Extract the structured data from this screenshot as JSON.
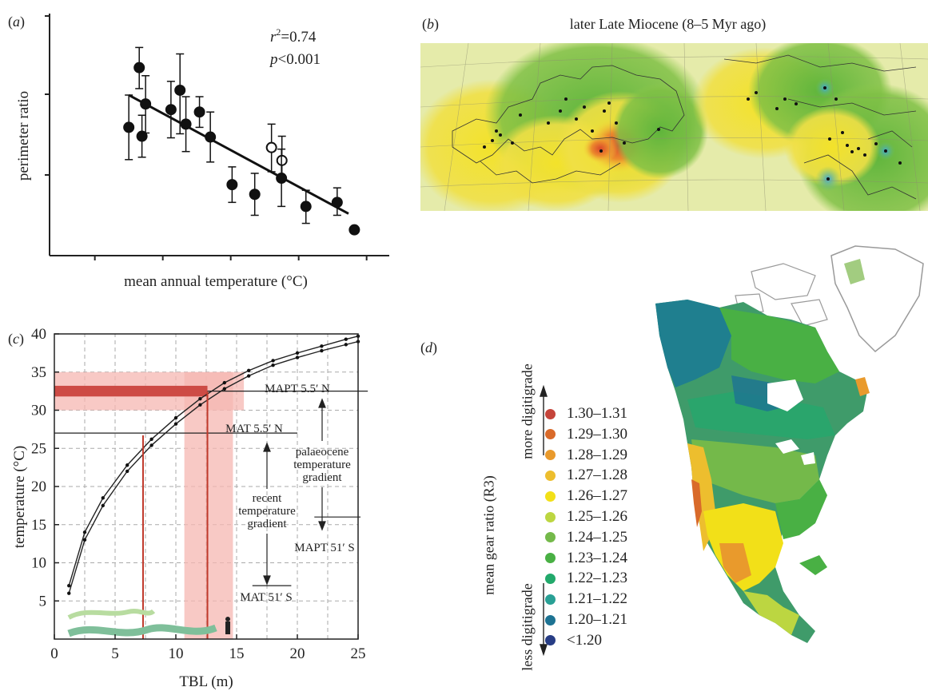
{
  "panels": {
    "a": {
      "label_pre": "(",
      "label_letter": "a",
      "label_post": ")",
      "r2_var": "r",
      "r2_sup": "2",
      "r2_val": "=0.74",
      "p_var": "p",
      "p_val": "<0.001"
    },
    "b": {
      "label_pre": "(",
      "label_letter": "b",
      "label_post": ")",
      "title": "later Late Miocene (8–5 Myr ago)"
    },
    "c": {
      "label_pre": "(",
      "label_letter": "c",
      "label_post": ")",
      "line_labels": {
        "mapt_n": "MAPT 5.5′ N",
        "mat_n": "MAT 5.5′ N",
        "mapt_s": "MAPT 51′ S",
        "mat_s": "MAT 51′ S"
      },
      "palaeo_gradient": [
        "palaeocene",
        "temperature",
        "gradient"
      ],
      "recent_gradient": [
        "recent",
        "temperature",
        "gradient"
      ]
    },
    "d": {
      "label_pre": "(",
      "label_letter": "d",
      "label_post": ")",
      "legend_title": "mean gear ratio (R3)",
      "more": "more digitigrade",
      "less": "less digitigrade",
      "legend": [
        {
          "label": "1.30–1.31",
          "color": "#c5443a"
        },
        {
          "label": "1.29–1.30",
          "color": "#d96a2a"
        },
        {
          "label": "1.28–1.29",
          "color": "#e99a2c"
        },
        {
          "label": "1.27–1.28",
          "color": "#edbe2e"
        },
        {
          "label": "1.26–1.27",
          "color": "#f2e018"
        },
        {
          "label": "1.25–1.26",
          "color": "#bcd641"
        },
        {
          "label": "1.24–1.25",
          "color": "#74b94a"
        },
        {
          "label": "1.23–1.24",
          "color": "#49b044"
        },
        {
          "label": "1.22–1.23",
          "color": "#22a96b"
        },
        {
          "label": "1.21–1.22",
          "color": "#29a095"
        },
        {
          "label": "1.20–1.21",
          "color": "#1d7393"
        },
        {
          "label": "<1.20",
          "color": "#273d85"
        }
      ]
    }
  },
  "chart_data": [
    {
      "type": "scatter",
      "xlabel": "mean annual temperature (°C)",
      "ylabel": "perimeter ratio",
      "x": [
        1,
        2,
        3,
        4,
        5,
        6,
        7
      ],
      "note_units": "axis ticks unlabeled; values in relative axis units",
      "points": [
        {
          "x": 1.75,
          "y": 1.59,
          "lo": 1.19,
          "hi": 1.99,
          "filled": true
        },
        {
          "x": 1.98,
          "y": 2.33,
          "lo": 2.07,
          "hi": 2.58,
          "filled": true
        },
        {
          "x": 2.04,
          "y": 1.48,
          "lo": 1.22,
          "hi": 1.74,
          "filled": true
        },
        {
          "x": 2.12,
          "y": 1.88,
          "lo": 1.52,
          "hi": 2.23,
          "filled": true
        },
        {
          "x": 2.68,
          "y": 1.81,
          "lo": 1.46,
          "hi": 2.16,
          "filled": true
        },
        {
          "x": 2.88,
          "y": 2.05,
          "lo": 1.51,
          "hi": 2.5,
          "filled": true
        },
        {
          "x": 3.01,
          "y": 1.63,
          "lo": 1.29,
          "hi": 1.97,
          "filled": true
        },
        {
          "x": 3.31,
          "y": 1.78,
          "lo": 1.59,
          "hi": 1.97,
          "filled": true
        },
        {
          "x": 3.55,
          "y": 1.47,
          "lo": 1.16,
          "hi": 1.78,
          "filled": true
        },
        {
          "x": 4.03,
          "y": 0.88,
          "lo": 0.66,
          "hi": 1.1,
          "filled": true
        },
        {
          "x": 4.53,
          "y": 0.76,
          "lo": 0.5,
          "hi": 1.02,
          "filled": true
        },
        {
          "x": 4.9,
          "y": 1.34,
          "lo": 1.04,
          "hi": 1.63,
          "filled": false
        },
        {
          "x": 5.13,
          "y": 1.18,
          "lo": 0.95,
          "hi": 1.48,
          "filled": false
        },
        {
          "x": 5.12,
          "y": 0.96,
          "lo": 0.61,
          "hi": 1.32,
          "filled": true
        },
        {
          "x": 5.66,
          "y": 0.61,
          "lo": 0.4,
          "hi": 0.81,
          "filled": true
        },
        {
          "x": 6.35,
          "y": 0.66,
          "lo": 0.5,
          "hi": 0.84,
          "filled": true
        },
        {
          "x": 6.73,
          "y": 0.32,
          "lo": null,
          "hi": null,
          "filled": true
        }
      ],
      "fit": {
        "x": [
          1.75,
          6.6
        ],
        "y": [
          1.99,
          0.52
        ]
      },
      "xlim": [
        0,
        7.5
      ],
      "ylim": [
        0,
        3
      ]
    },
    {
      "type": "line",
      "xlabel": "TBL (m)",
      "ylabel": "temperature (°C)",
      "xlim": [
        0,
        25
      ],
      "ylim": [
        0,
        40
      ],
      "xticks": [
        0,
        5,
        10,
        15,
        20,
        25
      ],
      "yticks": [
        5,
        10,
        15,
        20,
        25,
        30,
        35,
        40
      ],
      "grid": true,
      "series": [
        {
          "x": [
            1.2,
            2.5,
            4,
            6,
            8,
            10,
            12,
            14,
            16,
            18,
            20,
            22,
            24,
            25
          ],
          "y": [
            7,
            14,
            18.5,
            22.8,
            26.2,
            29,
            31.5,
            33.6,
            35.2,
            36.5,
            37.5,
            38.4,
            39.3,
            39.7
          ]
        },
        {
          "x": [
            1.2,
            2.5,
            4,
            6,
            8,
            10,
            12,
            14,
            16,
            18,
            20,
            22,
            24,
            25
          ],
          "y": [
            6,
            13,
            17.5,
            22,
            25.4,
            28.2,
            30.7,
            32.8,
            34.5,
            35.9,
            36.9,
            37.8,
            38.6,
            39
          ]
        }
      ],
      "reference_lines": [
        {
          "label": "MAPT 5.5′ N",
          "y": 32.5
        },
        {
          "label": "MAT 5.5′ N",
          "y": 27
        },
        {
          "label": "MAPT 51′ S",
          "y": 16
        },
        {
          "label": "MAT 51′ S",
          "y": 7
        }
      ],
      "shaded_bands": [
        {
          "axis": "y",
          "from": 30,
          "to": 35
        },
        {
          "axis": "x",
          "from": 10.7,
          "to": 14.7
        }
      ],
      "red_lines": [
        {
          "x": 7.3,
          "y": 26.7
        },
        {
          "x": 12.6,
          "y": 32.4
        }
      ]
    }
  ]
}
